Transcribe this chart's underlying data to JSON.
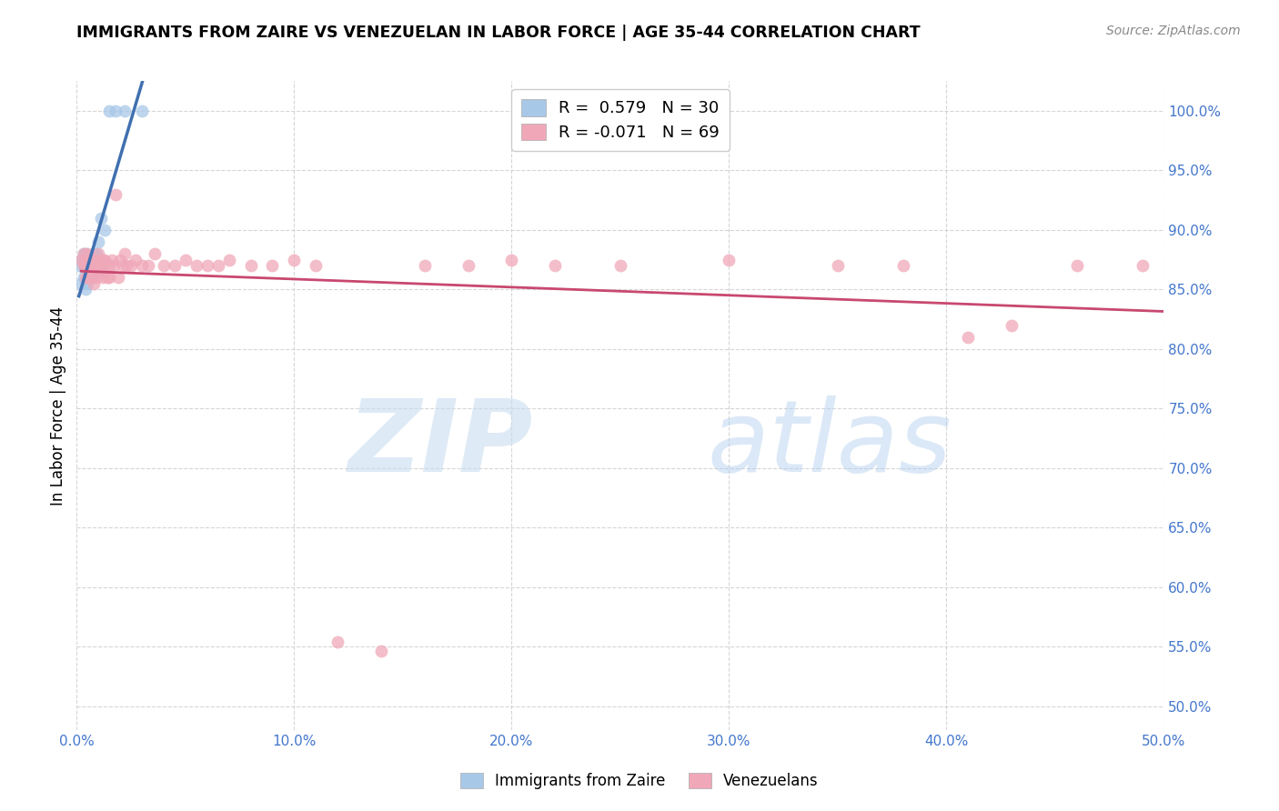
{
  "title": "IMMIGRANTS FROM ZAIRE VS VENEZUELAN IN LABOR FORCE | AGE 35-44 CORRELATION CHART",
  "source": "Source: ZipAtlas.com",
  "ylabel": "In Labor Force | Age 35-44",
  "xlim": [
    0.0,
    0.5
  ],
  "ylim": [
    0.48,
    1.025
  ],
  "x_ticks": [
    0.0,
    0.1,
    0.2,
    0.3,
    0.4,
    0.5
  ],
  "y_ticks": [
    0.5,
    0.55,
    0.6,
    0.65,
    0.7,
    0.75,
    0.8,
    0.85,
    0.9,
    0.95,
    1.0
  ],
  "legend_label_blue": "Immigrants from Zaire",
  "legend_label_pink": "Venezuelans",
  "r_blue": 0.579,
  "n_blue": 30,
  "r_pink": -0.071,
  "n_pink": 69,
  "blue_color": "#a8c8e8",
  "pink_color": "#f0a8b8",
  "blue_line_color": "#4070b0",
  "pink_line_color": "#c84870",
  "blue_scatter_x": [
    0.001,
    0.002,
    0.002,
    0.003,
    0.003,
    0.003,
    0.004,
    0.004,
    0.004,
    0.004,
    0.005,
    0.005,
    0.005,
    0.006,
    0.006,
    0.007,
    0.007,
    0.008,
    0.008,
    0.009,
    0.009,
    0.01,
    0.01,
    0.011,
    0.012,
    0.013,
    0.015,
    0.018,
    0.022,
    0.03
  ],
  "blue_scatter_y": [
    0.87,
    0.855,
    0.875,
    0.86,
    0.87,
    0.88,
    0.85,
    0.86,
    0.87,
    0.88,
    0.855,
    0.865,
    0.875,
    0.86,
    0.87,
    0.86,
    0.87,
    0.87,
    0.88,
    0.87,
    0.88,
    0.87,
    0.89,
    0.91,
    0.87,
    0.9,
    1.0,
    1.0,
    1.0,
    1.0
  ],
  "pink_scatter_x": [
    0.002,
    0.003,
    0.003,
    0.004,
    0.004,
    0.004,
    0.005,
    0.005,
    0.005,
    0.006,
    0.006,
    0.006,
    0.007,
    0.007,
    0.007,
    0.008,
    0.008,
    0.008,
    0.009,
    0.009,
    0.01,
    0.01,
    0.011,
    0.011,
    0.012,
    0.012,
    0.013,
    0.013,
    0.014,
    0.015,
    0.015,
    0.016,
    0.017,
    0.018,
    0.019,
    0.02,
    0.021,
    0.022,
    0.023,
    0.025,
    0.027,
    0.03,
    0.033,
    0.036,
    0.04,
    0.045,
    0.05,
    0.055,
    0.06,
    0.065,
    0.07,
    0.08,
    0.09,
    0.1,
    0.11,
    0.12,
    0.14,
    0.16,
    0.18,
    0.2,
    0.22,
    0.25,
    0.3,
    0.35,
    0.38,
    0.41,
    0.43,
    0.46,
    0.49
  ],
  "pink_scatter_y": [
    0.875,
    0.87,
    0.88,
    0.86,
    0.87,
    0.875,
    0.86,
    0.87,
    0.88,
    0.86,
    0.87,
    0.875,
    0.86,
    0.87,
    0.875,
    0.855,
    0.865,
    0.875,
    0.86,
    0.87,
    0.87,
    0.88,
    0.865,
    0.875,
    0.86,
    0.875,
    0.865,
    0.875,
    0.86,
    0.86,
    0.87,
    0.875,
    0.87,
    0.93,
    0.86,
    0.875,
    0.87,
    0.88,
    0.87,
    0.87,
    0.875,
    0.87,
    0.87,
    0.88,
    0.87,
    0.87,
    0.875,
    0.87,
    0.87,
    0.87,
    0.875,
    0.87,
    0.87,
    0.875,
    0.87,
    0.554,
    0.546,
    0.87,
    0.87,
    0.875,
    0.87,
    0.87,
    0.875,
    0.87,
    0.87,
    0.81,
    0.82,
    0.87,
    0.87
  ]
}
